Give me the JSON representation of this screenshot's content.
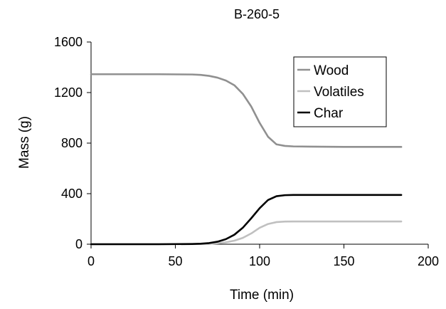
{
  "chart_data": {
    "type": "line",
    "title": "B-260-5",
    "xlabel": "Time (min)",
    "ylabel": "Mass (g)",
    "xlim": [
      0,
      200
    ],
    "ylim": [
      0,
      1600
    ],
    "xticks": [
      0,
      50,
      100,
      150,
      200
    ],
    "yticks": [
      0,
      400,
      800,
      1200,
      1600
    ],
    "grid": false,
    "legend_position": "top-right",
    "series": [
      {
        "name": "Wood",
        "color": "#909090",
        "x": [
          0,
          20,
          40,
          60,
          65,
          70,
          75,
          80,
          85,
          90,
          95,
          100,
          105,
          110,
          115,
          120,
          130,
          150,
          170,
          184
        ],
        "y": [
          1345,
          1345,
          1345,
          1343,
          1340,
          1332,
          1318,
          1295,
          1258,
          1190,
          1090,
          960,
          850,
          790,
          778,
          774,
          772,
          770,
          770,
          770
        ]
      },
      {
        "name": "Volatiles",
        "color": "#c0c0c0",
        "x": [
          0,
          20,
          40,
          60,
          70,
          75,
          80,
          85,
          90,
          95,
          100,
          105,
          110,
          115,
          120,
          130,
          150,
          170,
          184
        ],
        "y": [
          0,
          0,
          0,
          1,
          3,
          7,
          15,
          28,
          50,
          85,
          130,
          160,
          175,
          179,
          180,
          180,
          180,
          180,
          180
        ]
      },
      {
        "name": "Char",
        "color": "#000000",
        "x": [
          0,
          20,
          40,
          60,
          65,
          70,
          75,
          80,
          85,
          90,
          95,
          100,
          105,
          110,
          115,
          120,
          130,
          150,
          170,
          184
        ],
        "y": [
          0,
          0,
          0,
          2,
          4,
          9,
          20,
          40,
          75,
          130,
          205,
          285,
          350,
          380,
          388,
          390,
          390,
          390,
          390,
          390
        ]
      }
    ]
  }
}
